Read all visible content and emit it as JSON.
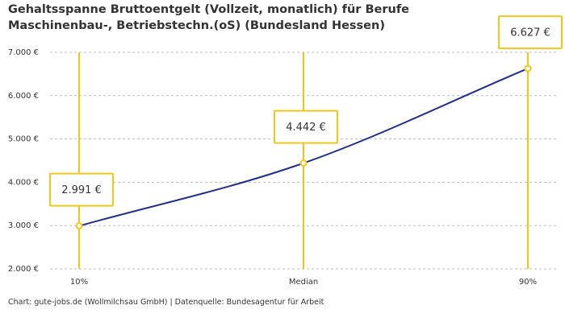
{
  "chart_data": {
    "type": "line",
    "title": "Gehaltsspanne Bruttoentgelt (Vollzeit, monatlich) für Berufe Maschinenbau-, Betriebstechn.(oS) (Bundesland Hessen)",
    "categories": [
      "10%",
      "Median",
      "90%"
    ],
    "values": [
      2991,
      4442,
      6627
    ],
    "value_labels": [
      "2.991 €",
      "4.442 €",
      "6.627 €"
    ],
    "color": "#1f2f8a",
    "marker_color": "#f5c518",
    "ylim": [
      2000,
      7000
    ],
    "yticks": [
      {
        "value": 2000,
        "label": "2.000 €"
      },
      {
        "value": 3000,
        "label": "3.000 €"
      },
      {
        "value": 4000,
        "label": "4.000 €"
      },
      {
        "value": 5000,
        "label": "5.000 €"
      },
      {
        "value": 6000,
        "label": "6.000 €"
      },
      {
        "value": 7000,
        "label": "7.000 €"
      }
    ],
    "grid": true,
    "source": "Chart: gute-jobs.de (Wollmilchsau GmbH) | Datenquelle: Bundesagentur für Arbeit"
  }
}
